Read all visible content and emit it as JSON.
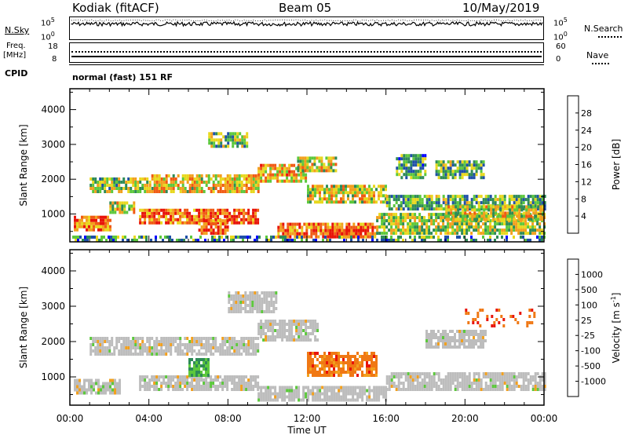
{
  "header": {
    "station": "Kodiak (fitACF)",
    "beam": "Beam 05",
    "date": "10/May/2019"
  },
  "top_panels": {
    "nsky_label": "N.Sky",
    "nsky_ticks": [
      "10^5",
      "10^0"
    ],
    "nsearch_label": "N.Search",
    "nsearch_ticks": [
      "10^5",
      "10^0"
    ],
    "freq_label": "Freq.",
    "freq_unit": "[MHz]",
    "freq_ticks": [
      "18",
      "8"
    ],
    "nave_label": "Nave",
    "nave_ticks": [
      "60",
      "0"
    ],
    "cpid_label": "CPID",
    "cpid_value": "normal (fast) 151 RF"
  },
  "chart_data": [
    {
      "type": "heatmap",
      "name": "power",
      "ylabel": "Slant Range [km]",
      "yticks": [
        1000,
        2000,
        3000,
        4000
      ],
      "ylim": [
        200,
        4600
      ],
      "x_ticks": [
        "00:00",
        "04:00",
        "08:00",
        "12:00",
        "16:00",
        "20:00",
        "00:00"
      ],
      "colorbar_label": "Power [dB]",
      "colorbar_ticks": [
        4,
        8,
        12,
        16,
        20,
        24,
        28
      ],
      "colors": [
        "#0000ff",
        "#1f4fa8",
        "#2e8b57",
        "#5cc83c",
        "#e8d81e",
        "#f2a01e",
        "#f05a14",
        "#e8140a"
      ],
      "regions": [
        {
          "t0": 0.2,
          "t1": 2.0,
          "r0": 500,
          "r1": 900,
          "level": 0.75
        },
        {
          "t0": 2.0,
          "t1": 3.3,
          "r0": 1000,
          "r1": 1300,
          "level": 0.55
        },
        {
          "t0": 3.5,
          "t1": 9.5,
          "r0": 700,
          "r1": 1100,
          "level": 0.8
        },
        {
          "t0": 6.5,
          "t1": 8.0,
          "r0": 400,
          "r1": 800,
          "level": 0.85
        },
        {
          "t0": 10.5,
          "t1": 15.5,
          "r0": 300,
          "r1": 700,
          "level": 0.8
        },
        {
          "t0": 13.0,
          "t1": 15.0,
          "r0": 300,
          "r1": 550,
          "level": 0.95
        },
        {
          "t0": 15.5,
          "t1": 24.0,
          "r0": 400,
          "r1": 1000,
          "level": 0.5
        },
        {
          "t0": 1.0,
          "t1": 4.0,
          "r0": 1600,
          "r1": 2000,
          "level": 0.45
        },
        {
          "t0": 4.0,
          "t1": 9.5,
          "r0": 1600,
          "r1": 2100,
          "level": 0.6
        },
        {
          "t0": 9.5,
          "t1": 12.0,
          "r0": 1900,
          "r1": 2400,
          "level": 0.65
        },
        {
          "t0": 11.5,
          "t1": 13.5,
          "r0": 2200,
          "r1": 2600,
          "level": 0.55
        },
        {
          "t0": 12.0,
          "t1": 16.0,
          "r0": 1300,
          "r1": 1800,
          "level": 0.55
        },
        {
          "t0": 16.0,
          "t1": 24.0,
          "r0": 1100,
          "r1": 1500,
          "level": 0.4
        },
        {
          "t0": 19.0,
          "t1": 24.0,
          "r0": 800,
          "r1": 1200,
          "level": 0.55
        },
        {
          "t0": 7.0,
          "t1": 9.0,
          "r0": 2900,
          "r1": 3300,
          "level": 0.45
        },
        {
          "t0": 16.5,
          "t1": 18.0,
          "r0": 2000,
          "r1": 2700,
          "level": 0.35
        },
        {
          "t0": 18.5,
          "t1": 21.0,
          "r0": 2000,
          "r1": 2500,
          "level": 0.4
        },
        {
          "t0": 0.0,
          "t1": 24.0,
          "r0": 200,
          "r1": 350,
          "level": 0.3
        }
      ]
    },
    {
      "type": "heatmap",
      "name": "velocity",
      "ylabel": "Slant Range [km]",
      "yticks": [
        1000,
        2000,
        3000,
        4000
      ],
      "ylim": [
        200,
        4600
      ],
      "x_ticks": [
        "00:00",
        "04:00",
        "08:00",
        "12:00",
        "16:00",
        "20:00",
        "00:00"
      ],
      "xlabel": "Time UT",
      "colorbar_label": "Velocity [m s^-1]",
      "colorbar_ticks": [
        "1000",
        "500",
        "100",
        "25",
        "-25",
        "-100",
        "-500",
        "-1000"
      ],
      "colors": [
        "#1e3cc8",
        "#2a6ab0",
        "#2e8b57",
        "#5cc83c",
        "#b4b4b4",
        "#b4b4b4",
        "#f2a01e",
        "#f05a14",
        "#e8140a"
      ],
      "regions": [
        {
          "t0": 0.2,
          "t1": 2.5,
          "r0": 500,
          "r1": 900,
          "kind": "ground"
        },
        {
          "t0": 3.5,
          "t1": 9.5,
          "r0": 600,
          "r1": 1000,
          "kind": "ground"
        },
        {
          "t0": 9.5,
          "t1": 16.0,
          "r0": 300,
          "r1": 700,
          "kind": "ground"
        },
        {
          "t0": 16.0,
          "t1": 24.0,
          "r0": 600,
          "r1": 1100,
          "kind": "ground"
        },
        {
          "t0": 1.0,
          "t1": 9.5,
          "r0": 1600,
          "r1": 2100,
          "kind": "ground"
        },
        {
          "t0": 9.5,
          "t1": 12.5,
          "r0": 2000,
          "r1": 2600,
          "kind": "ground"
        },
        {
          "t0": 8.0,
          "t1": 10.5,
          "r0": 2800,
          "r1": 3400,
          "kind": "ground"
        },
        {
          "t0": 12.0,
          "t1": 15.5,
          "r0": 1000,
          "r1": 1700,
          "kind": "away"
        },
        {
          "t0": 6.0,
          "t1": 7.0,
          "r0": 1000,
          "r1": 1500,
          "kind": "toward"
        },
        {
          "t0": 18.0,
          "t1": 21.0,
          "r0": 1800,
          "r1": 2300,
          "kind": "ground"
        },
        {
          "t0": 20.0,
          "t1": 23.5,
          "r0": 2400,
          "r1": 2900,
          "kind": "away_sparse"
        }
      ]
    }
  ]
}
